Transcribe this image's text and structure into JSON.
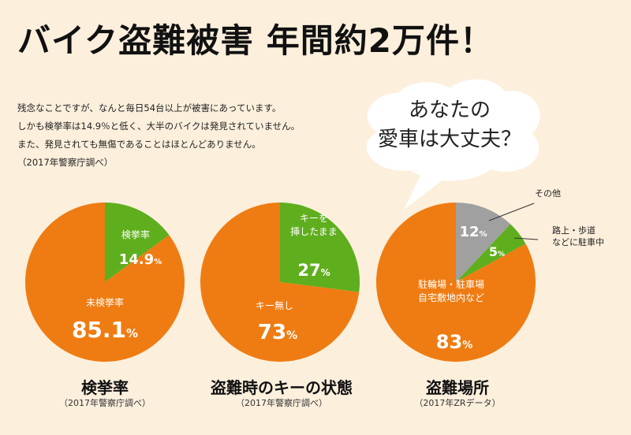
{
  "headline": "バイク盗難被害 年間約2万件！",
  "intro": [
    "残念なことですが、なんと毎日54台以上が被害にあっています。",
    "しかも検挙率は14.9％と低く、大半のバイクは発見されていません。",
    "また、発見されても無傷であることはほとんどありません。",
    "（2017年警察庁調べ）"
  ],
  "bubble": {
    "line1": "あなたの",
    "line2": "愛車は大丈夫？"
  },
  "colors": {
    "orange": "#ef7c12",
    "green": "#5fae1e",
    "gray": "#a0a0a0",
    "text_on_slice": "#ffffff"
  },
  "chart_data": [
    {
      "type": "pie",
      "title": "検挙率",
      "subtitle": "（2017年警察庁調べ）",
      "slices": [
        {
          "label": "検挙率",
          "value": 14.9,
          "display": "14.9",
          "color": "#5fae1e"
        },
        {
          "label": "未検挙率",
          "value": 85.1,
          "display": "85.1",
          "color": "#ef7c12"
        }
      ],
      "unit": "%"
    },
    {
      "type": "pie",
      "title": "盗難時のキーの状態",
      "subtitle": "（2017年警察庁調べ）",
      "slices": [
        {
          "label": "キーを\n挿したまま",
          "value": 27,
          "display": "27",
          "color": "#5fae1e"
        },
        {
          "label": "キー無し",
          "value": 73,
          "display": "73",
          "color": "#ef7c12"
        }
      ],
      "unit": "%"
    },
    {
      "type": "pie",
      "title": "盗難場所",
      "subtitle": "（2017年ZRデータ）",
      "slices": [
        {
          "label": "駐輪場・駐車場\n自宅敷地内など",
          "value": 83,
          "display": "83",
          "color": "#ef7c12"
        },
        {
          "label": "その他",
          "value": 12,
          "display": "12",
          "color": "#a0a0a0"
        },
        {
          "label": "路上・歩道\nなどに駐車中",
          "value": 5,
          "display": "5",
          "color": "#5fae1e"
        }
      ],
      "unit": "%"
    }
  ]
}
